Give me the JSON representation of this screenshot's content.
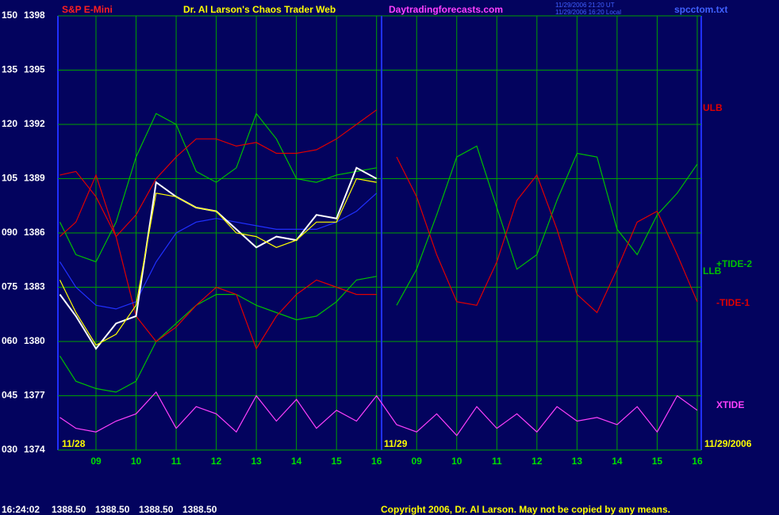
{
  "chart_data": {
    "type": "line",
    "title": "Dr. Al Larson's Chaos Trader Web",
    "header_texts": {
      "symbol": "S&P E-Mini",
      "site": "Daytradingforecasts.com",
      "time_ut": "11/29/2006 21:20 UT",
      "time_local": "11/29/2006 16:20 Local",
      "file": "spcctom.txt"
    },
    "footer_texts": {
      "time": "16:24:02",
      "quotes": [
        "1388.50",
        "1388.50",
        "1388.50",
        "1388.50"
      ],
      "copyright": "Copyright 2006, Dr. Al Larson. May not be copied by any means."
    },
    "date_labels": [
      "11/28",
      "11/29",
      "11/29/2006"
    ],
    "annotations": [
      "ULB",
      "LLB"
    ],
    "x": [
      8.1,
      8.5,
      9,
      9.5,
      10,
      10.5,
      11,
      11.5,
      12,
      12.5,
      13,
      13.5,
      14,
      14.5,
      15,
      15.5,
      16,
      16.5,
      17,
      17.5,
      18,
      18.5,
      19,
      19.5,
      20,
      20.5,
      21,
      21.5,
      22,
      22.5,
      23,
      23.5,
      24
    ],
    "xlim": [
      8.05,
      24.1
    ],
    "xticks": [
      {
        "value": 9,
        "label": "09"
      },
      10,
      11,
      12,
      13,
      14,
      15,
      16,
      {
        "value": 17,
        "label": "09"
      },
      {
        "value": 18,
        "label": "10"
      },
      {
        "value": 19,
        "label": "11"
      },
      {
        "value": 20,
        "label": "12"
      },
      {
        "value": 21,
        "label": "13"
      },
      {
        "value": 22,
        "label": "14"
      },
      {
        "value": 23,
        "label": "15"
      },
      {
        "value": 24,
        "label": "16"
      }
    ],
    "ylim": [
      30,
      150
    ],
    "yticks": [
      {
        "value": 30,
        "label": "030"
      },
      {
        "value": 45,
        "label": "045"
      },
      {
        "value": 60,
        "label": "060"
      },
      {
        "value": 75,
        "label": "075"
      },
      {
        "value": 90,
        "label": "090"
      },
      105,
      120,
      135,
      150
    ],
    "y2lim": [
      1374,
      1398
    ],
    "y2ticks": [
      1374,
      1377,
      1380,
      1383,
      1386,
      1389,
      1392,
      1395,
      1398
    ],
    "grid": true,
    "series": [
      {
        "color": "#00c000",
        "values": [
          93,
          84,
          82,
          93,
          111,
          123,
          120,
          107,
          104,
          108,
          123,
          116,
          105,
          104,
          106,
          107,
          108,
          null,
          null,
          null,
          null,
          null,
          null,
          null,
          null,
          null,
          null,
          null,
          null,
          null,
          null,
          null,
          null
        ]
      },
      {
        "color": "#00c000",
        "values": [
          56,
          49,
          47,
          46,
          49,
          60,
          65,
          70,
          73,
          73,
          70,
          68,
          66,
          67,
          71,
          77,
          78,
          null,
          null,
          null,
          null,
          null,
          null,
          null,
          null,
          null,
          null,
          null,
          null,
          null,
          null,
          null,
          null
        ]
      },
      {
        "color": "#e00000",
        "values": [
          106,
          107,
          100,
          89,
          95,
          105,
          111,
          116,
          116,
          114,
          115,
          112,
          112,
          113,
          116,
          120,
          124,
          null,
          null,
          null,
          null,
          null,
          null,
          null,
          null,
          null,
          null,
          null,
          null,
          null,
          null,
          null,
          null
        ]
      },
      {
        "color": "#e00000",
        "values": [
          89,
          93,
          106,
          89,
          67,
          60,
          64,
          70,
          75,
          73,
          58,
          67,
          73,
          77,
          75,
          73,
          73,
          null,
          null,
          null,
          null,
          null,
          null,
          null,
          null,
          null,
          null,
          null,
          null,
          null,
          null,
          null,
          null
        ]
      },
      {
        "color": "#2030ff",
        "values": [
          82,
          75,
          70,
          69,
          71,
          82,
          90,
          93,
          94,
          93,
          92,
          91,
          91,
          91,
          93,
          96,
          101,
          null,
          null,
          null,
          null,
          null,
          null,
          null,
          null,
          null,
          null,
          null,
          null,
          null,
          null,
          null,
          null
        ]
      },
      {
        "color": "#ffffff",
        "values": [
          73,
          67,
          58,
          65,
          67,
          104,
          100,
          97,
          96,
          91,
          86,
          89,
          88,
          95,
          94,
          108,
          105,
          null,
          null,
          null,
          null,
          null,
          null,
          null,
          null,
          null,
          null,
          null,
          null,
          null,
          null,
          null,
          null
        ]
      },
      {
        "color": "#ffff00",
        "values": [
          77,
          68,
          59,
          62,
          70,
          101,
          100,
          97,
          96,
          90,
          89,
          86,
          88,
          93,
          93,
          105,
          104,
          null,
          null,
          null,
          null,
          null,
          null,
          null,
          null,
          null,
          null,
          null,
          null,
          null,
          null,
          null,
          null
        ]
      },
      {
        "name": "+TIDE-2",
        "color": "#00c000",
        "values": [
          null,
          null,
          null,
          null,
          null,
          null,
          null,
          null,
          null,
          null,
          null,
          null,
          null,
          null,
          null,
          null,
          null,
          70,
          80,
          95,
          111,
          114,
          97,
          80,
          84,
          99,
          112,
          111,
          91,
          84,
          95,
          101,
          109
        ]
      },
      {
        "name": "-TIDE-1",
        "color": "#e00000",
        "values": [
          null,
          null,
          null,
          null,
          null,
          null,
          null,
          null,
          null,
          null,
          null,
          null,
          null,
          null,
          null,
          null,
          null,
          111,
          100,
          84,
          71,
          70,
          82,
          99,
          106,
          91,
          73,
          68,
          80,
          93,
          96,
          84,
          71
        ]
      },
      {
        "name": "XTIDE",
        "color": "#ff40ff",
        "values": [
          39,
          36,
          35,
          38,
          40,
          46,
          36,
          42,
          40,
          35,
          45,
          38,
          44,
          36,
          41,
          38,
          45,
          37,
          35,
          40,
          34,
          42,
          36,
          40,
          35,
          42,
          38,
          39,
          37,
          42,
          35,
          45,
          41
        ]
      }
    ]
  }
}
